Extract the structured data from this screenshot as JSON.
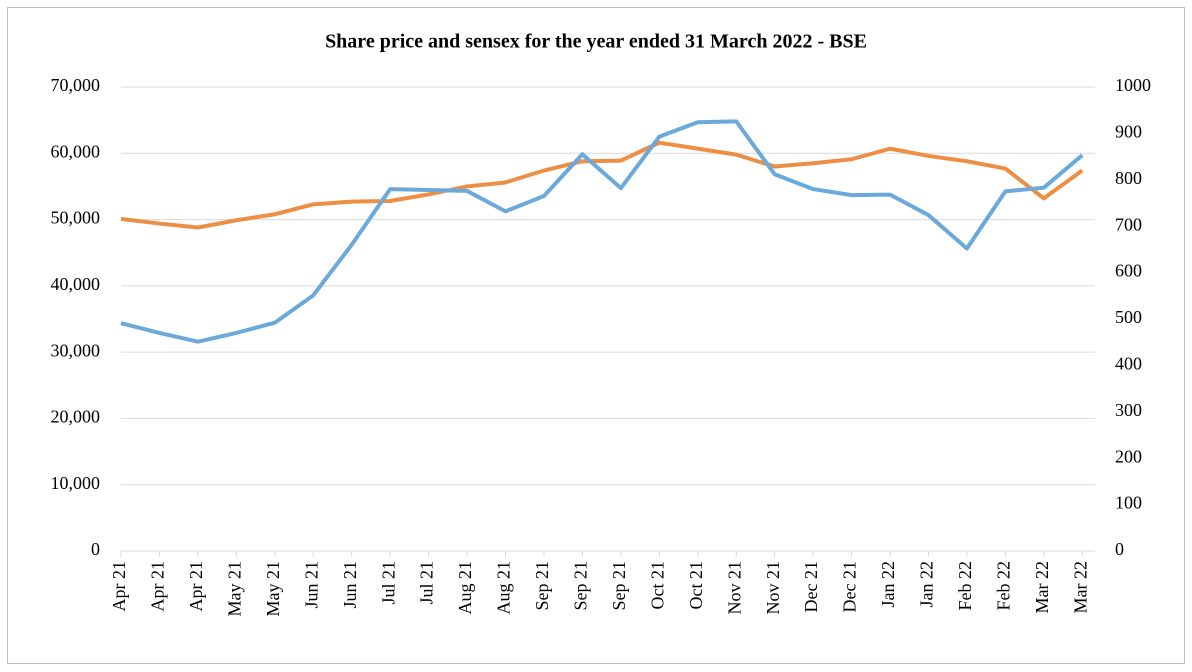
{
  "chart_data": {
    "type": "line",
    "title": "Share price and sensex for the year ended 31 March 2022 - BSE",
    "categories": [
      "Apr 21",
      "Apr 21",
      "Apr 21",
      "May 21",
      "May 21",
      "Jun 21",
      "Jun 21",
      "Jul 21",
      "Jul 21",
      "Aug 21",
      "Aug 21",
      "Sep 21",
      "Sep 21",
      "Sep 21",
      "Oct 21",
      "Oct 21",
      "Nov 21",
      "Nov 21",
      "Dec 21",
      "Dec 21",
      "Jan 22",
      "Jan 22",
      "Feb 22",
      "Feb 22",
      "Mar 22",
      "Mar 22"
    ],
    "series": [
      {
        "color": "#ed8e45",
        "axis": "y",
        "values": [
          50100,
          49400,
          48800,
          49900,
          50800,
          52300,
          52700,
          52800,
          53800,
          55000,
          55600,
          57400,
          58800,
          58900,
          61600,
          60700,
          59800,
          58000,
          58500,
          59100,
          60700,
          59600,
          58800,
          57700,
          53200,
          57400
        ]
      },
      {
        "color": "#6aa9da",
        "axis": "y2",
        "values": [
          491,
          470,
          451,
          470,
          492,
          551,
          660,
          780,
          778,
          776,
          732,
          765,
          855,
          782,
          893,
          924,
          926,
          812,
          780,
          767,
          768,
          724,
          652,
          775,
          783,
          853
        ]
      }
    ],
    "ylim": [
      0,
      70000
    ],
    "yticks": [
      0,
      {
        "value": 10000,
        "label": "10,000"
      },
      {
        "value": 20000,
        "label": "20,000"
      },
      {
        "value": 30000,
        "label": "30,000"
      },
      {
        "value": 40000,
        "label": "40,000"
      },
      {
        "value": 50000,
        "label": "50,000"
      },
      {
        "value": 60000,
        "label": "60,000"
      },
      {
        "value": 70000,
        "label": "70,000"
      }
    ],
    "y2lim": [
      0,
      1000
    ],
    "y2ticks": [
      0,
      100,
      200,
      300,
      400,
      500,
      600,
      700,
      800,
      900,
      1000
    ],
    "grid": true
  }
}
